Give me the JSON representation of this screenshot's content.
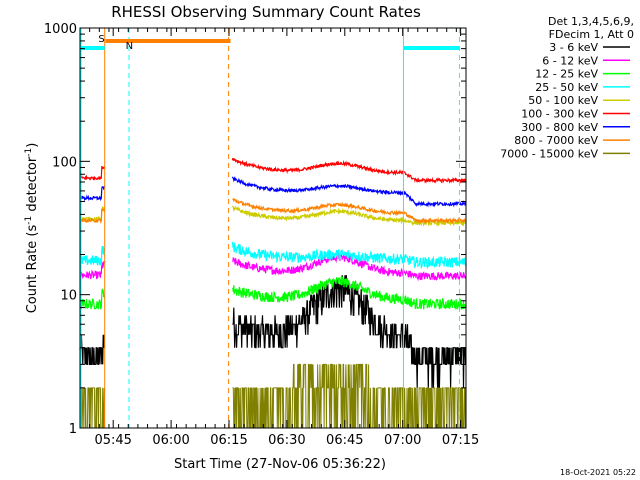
{
  "chart_data": {
    "type": "line",
    "title": "RHESSI Observing Summary Count Rates",
    "xlabel": "Start Time (27-Nov-06 05:36:22)",
    "ylabel": "Count Rate (s",
    "ylabel_sup1": "-1",
    "ylabel_mid": " detector",
    "ylabel_sup2": "-1",
    "ylabel_end": ")",
    "yscale": "log",
    "ylim": [
      1,
      1000
    ],
    "xlim_minutes": [
      0,
      100
    ],
    "x_ticks": [
      {
        "label": "05:45",
        "minute": 8.6
      },
      {
        "label": "06:00",
        "minute": 23.6
      },
      {
        "label": "06:15",
        "minute": 38.6
      },
      {
        "label": "06:30",
        "minute": 53.6
      },
      {
        "label": "06:45",
        "minute": 68.6
      },
      {
        "label": "07:00",
        "minute": 83.6
      },
      {
        "label": "07:15",
        "minute": 98.6
      }
    ],
    "y_ticks": [
      {
        "label": "1",
        "value": 1
      },
      {
        "label": "10",
        "value": 10
      },
      {
        "label": "100",
        "value": 100
      },
      {
        "label": "1000",
        "value": 1000
      }
    ],
    "legend_header": [
      "Det 1,3,4,5,6,9,",
      "FDecim 1, Att 0"
    ],
    "series": [
      {
        "name": "3 - 6 keV",
        "color": "#000000",
        "pre": 3.5,
        "post_start": 6,
        "post_base": 4.8,
        "bump": 11,
        "end": 3.4,
        "noise": 0.1
      },
      {
        "name": "6 - 12 keV",
        "color": "#ff00ff",
        "pre": 14,
        "post_start": 18,
        "post_base": 14.5,
        "bump": 19,
        "end": 13.8,
        "noise": 0.03
      },
      {
        "name": "12 - 25 keV",
        "color": "#00ff00",
        "pre": 8.5,
        "post_start": 11,
        "post_base": 9.2,
        "bump": 12.5,
        "end": 8.5,
        "noise": 0.04
      },
      {
        "name": "25 - 50 keV",
        "color": "#00ffff",
        "pre": 18,
        "post_start": 23,
        "post_base": 18.5,
        "bump": 20,
        "end": 17.5,
        "noise": 0.04
      },
      {
        "name": "50 - 100 keV",
        "color": "#cccc00",
        "pre": 37,
        "post_start": 45,
        "post_base": 36,
        "bump": 42,
        "end": 34.5,
        "noise": 0.015
      },
      {
        "name": "100 - 300 keV",
        "color": "#ff0000",
        "pre": 75,
        "post_start": 105,
        "post_base": 82,
        "bump": 96,
        "end": 72,
        "noise": 0.012
      },
      {
        "name": "300 - 800 keV",
        "color": "#0000ff",
        "pre": 53,
        "post_start": 75,
        "post_base": 58,
        "bump": 65,
        "end": 48,
        "noise": 0.012
      },
      {
        "name": "800 - 7000 keV",
        "color": "#ff8000",
        "pre": 36,
        "post_start": 52,
        "post_base": 41,
        "bump": 47,
        "end": 36,
        "noise": 0.012
      },
      {
        "name": "7000 - 15000 keV",
        "color": "#808000",
        "pre": 1.5,
        "post_start": 1.5,
        "post_base": 1.5,
        "bump": 2.2,
        "end": 1.5,
        "noise": 0.0
      }
    ],
    "data_gap_minutes": [
      6.4,
      39.4
    ],
    "flags": [
      {
        "label": "S",
        "color": "#ff8000",
        "start": 6.6,
        "end": 39.0,
        "label_minute": 5.6
      },
      {
        "label": "N",
        "color": "#00ffff",
        "start": 0,
        "end": 6.4,
        "label_minute": 12.8
      }
    ],
    "cyan_bar_right": {
      "start": 83.8,
      "end": 98.4
    },
    "orange_vlines_minutes": [
      6.4,
      38.5
    ],
    "orange_dashed_minutes": [
      38.5
    ],
    "cyan_vlines_solid_minutes": [
      0,
      83.8
    ],
    "cyan_vlines_dashed_minutes": [
      12.7,
      98.3
    ],
    "timestamp": "18-Oct-2021 05:22"
  }
}
